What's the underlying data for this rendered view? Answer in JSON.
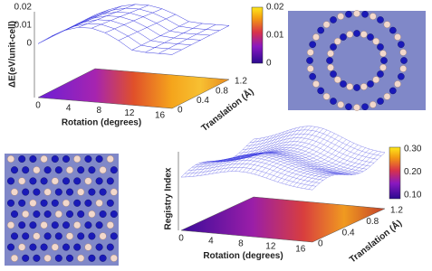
{
  "panels": [
    {
      "z_axis_label": "ΔE(eV/unit-cell)",
      "z_ticks": [
        "0",
        "0.01",
        "0.02"
      ],
      "x_axis_label": "Rotation (degrees)",
      "x_ticks": [
        "0",
        "4",
        "8",
        "12",
        "16"
      ],
      "y_axis_label": "Translation (Å)",
      "y_ticks": [
        "0",
        "0.4",
        "0.8",
        "1.2"
      ],
      "colorbar_ticks": [
        "0.02",
        "0.01",
        "0"
      ]
    },
    {
      "z_axis_label": "Registry Index",
      "x_axis_label": "Rotation (degrees)",
      "x_ticks": [
        "0",
        "4",
        "8",
        "12",
        "16"
      ],
      "y_axis_label": "Translation (Å)",
      "y_ticks": [
        "0",
        "0.4",
        "0.8",
        "1.2"
      ],
      "colorbar_ticks": [
        "0.30",
        "0.20",
        "0.10"
      ]
    }
  ]
}
